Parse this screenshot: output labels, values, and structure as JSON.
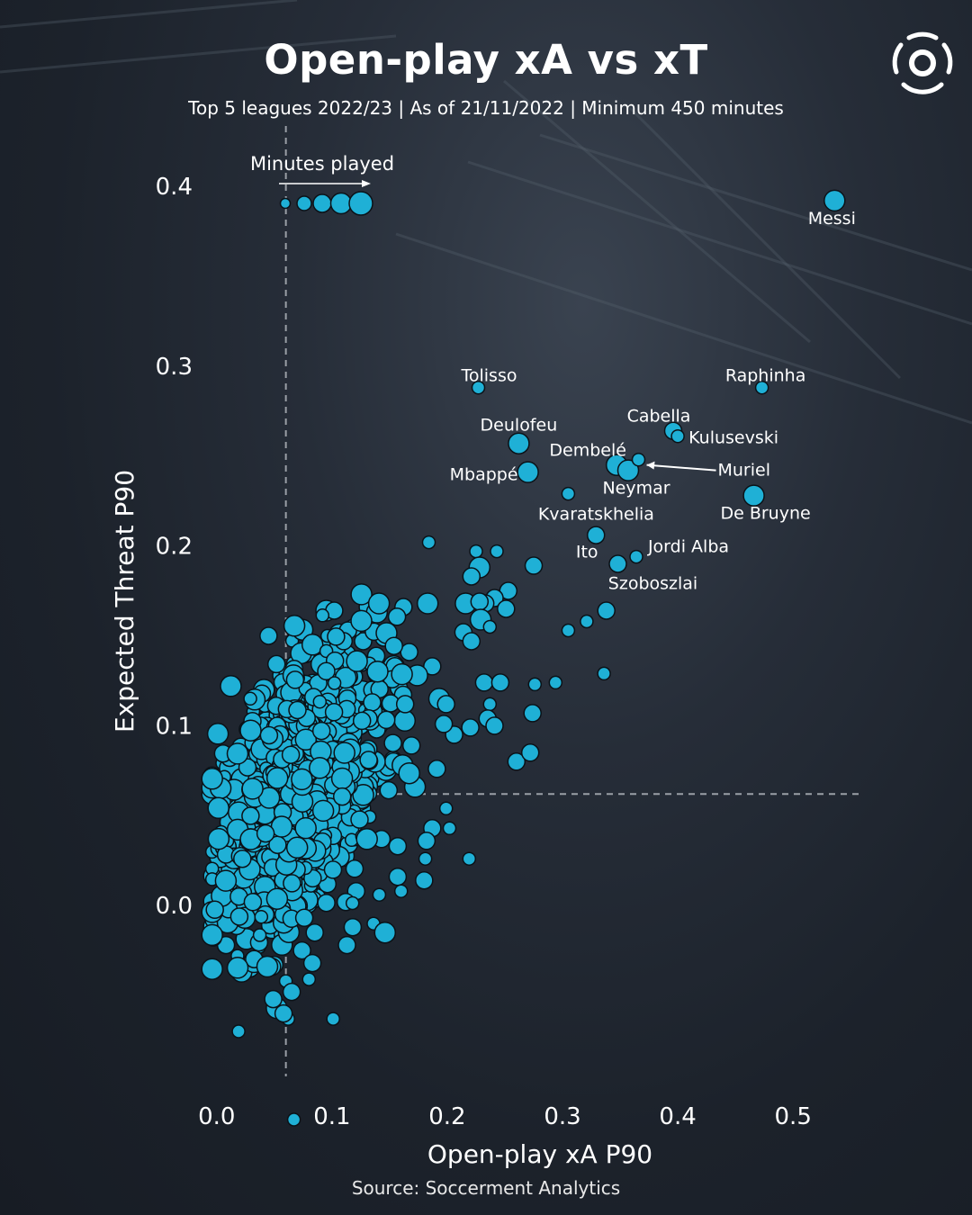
{
  "header": {
    "title": "Open-play xA vs xT",
    "subtitle": "Top 5 leagues 2022/23 | As of 21/11/2022 | Minimum 450 minutes",
    "source": "Source: Soccerment Analytics",
    "logo_icon": "soccerment-logo-icon"
  },
  "colors": {
    "marker": "#1fb0d6",
    "marker_edge": "#0b1218",
    "text": "#ffffff",
    "reference_line": "#9a9fa6",
    "background": "#1e242d"
  },
  "chart_data": {
    "type": "scatter",
    "title": "Open-play xA vs xT",
    "subtitle": "Top 5 leagues 2022/23 | As of 21/11/2022 | Minimum 450 minutes",
    "xlabel": "Open-play xA P90",
    "ylabel": "Expected Threat P90",
    "xlim": [
      -0.01,
      0.56
    ],
    "ylim": [
      -0.095,
      0.425
    ],
    "xticks": [
      0.0,
      0.1,
      0.2,
      0.3,
      0.4,
      0.5
    ],
    "xtick_labels": [
      "0.0",
      "0.1",
      "0.2",
      "0.3",
      "0.4",
      "0.5"
    ],
    "yticks": [
      0.0,
      0.1,
      0.2,
      0.3,
      0.4
    ],
    "ytick_labels": [
      "0.0",
      "0.1",
      "0.2",
      "0.3",
      "0.4"
    ],
    "grid": false,
    "reference_lines": {
      "x": 0.06,
      "y": 0.062
    },
    "size_legend": {
      "label": "Minutes played",
      "position": "top-left",
      "sizes": [
        "smallest",
        "small",
        "medium",
        "large",
        "largest"
      ]
    },
    "highlighted_players": [
      {
        "name": "Messi",
        "x": 0.536,
        "y": 0.392,
        "size": 3
      },
      {
        "name": "Tolisso",
        "x": 0.227,
        "y": 0.288,
        "size": 1
      },
      {
        "name": "Raphinha",
        "x": 0.473,
        "y": 0.288,
        "size": 1
      },
      {
        "name": "Deulofeu",
        "x": 0.262,
        "y": 0.257,
        "size": 3
      },
      {
        "name": "Cabella",
        "x": 0.396,
        "y": 0.264,
        "size": 2
      },
      {
        "name": "Kulusevski",
        "x": 0.4,
        "y": 0.261,
        "size": 1
      },
      {
        "name": "Dembelé",
        "x": 0.347,
        "y": 0.245,
        "size": 3
      },
      {
        "name": "Mbappé",
        "x": 0.27,
        "y": 0.241,
        "size": 3
      },
      {
        "name": "Neymar",
        "x": 0.357,
        "y": 0.242,
        "size": 3
      },
      {
        "name": "Muriel",
        "x": 0.366,
        "y": 0.248,
        "size": 1
      },
      {
        "name": "De Bruyne",
        "x": 0.466,
        "y": 0.228,
        "size": 3
      },
      {
        "name": "Kvaratskhelia",
        "x": 0.305,
        "y": 0.229,
        "size": 1
      },
      {
        "name": "Ito",
        "x": 0.329,
        "y": 0.206,
        "size": 2
      },
      {
        "name": "Jordi Alba",
        "x": 0.364,
        "y": 0.194,
        "size": 1
      },
      {
        "name": "Szoboszlai",
        "x": 0.348,
        "y": 0.19,
        "size": 2
      }
    ],
    "other_players": [
      [
        0.184,
        0.202,
        1
      ],
      [
        0.225,
        0.197,
        1
      ],
      [
        0.243,
        0.197,
        1
      ],
      [
        0.275,
        0.189,
        2
      ],
      [
        0.228,
        0.188,
        3
      ],
      [
        0.221,
        0.183,
        2
      ],
      [
        0.253,
        0.175,
        2
      ],
      [
        0.241,
        0.171,
        2
      ],
      [
        0.233,
        0.168,
        2
      ],
      [
        0.216,
        0.168,
        3
      ],
      [
        0.251,
        0.165,
        2
      ],
      [
        0.228,
        0.169,
        2
      ],
      [
        0.183,
        0.168,
        3
      ],
      [
        0.162,
        0.166,
        2
      ],
      [
        0.095,
        0.164,
        3
      ],
      [
        0.102,
        0.164,
        2
      ],
      [
        0.131,
        0.166,
        2
      ],
      [
        0.139,
        0.163,
        3
      ],
      [
        0.229,
        0.159,
        3
      ],
      [
        0.214,
        0.152,
        2
      ],
      [
        0.237,
        0.155,
        1
      ],
      [
        0.338,
        0.164,
        2
      ],
      [
        0.321,
        0.158,
        1
      ],
      [
        0.305,
        0.153,
        1
      ],
      [
        0.221,
        0.147,
        2
      ],
      [
        0.045,
        0.15,
        2
      ],
      [
        0.069,
        0.153,
        1
      ],
      [
        0.092,
        0.143,
        2
      ],
      [
        0.232,
        0.124,
        2
      ],
      [
        0.246,
        0.124,
        2
      ],
      [
        0.276,
        0.123,
        1
      ],
      [
        0.294,
        0.124,
        1
      ],
      [
        0.336,
        0.129,
        1
      ],
      [
        0.237,
        0.112,
        1
      ],
      [
        0.235,
        0.104,
        2
      ],
      [
        0.274,
        0.107,
        2
      ],
      [
        0.241,
        0.1,
        2
      ],
      [
        0.22,
        0.099,
        2
      ],
      [
        0.206,
        0.095,
        2
      ],
      [
        0.26,
        0.08,
        2
      ],
      [
        0.272,
        0.085,
        2
      ],
      [
        0.199,
        0.054,
        1
      ],
      [
        0.202,
        0.043,
        1
      ],
      [
        0.187,
        0.043,
        2
      ],
      [
        0.182,
        0.036,
        2
      ],
      [
        0.157,
        0.033,
        2
      ],
      [
        0.219,
        0.026,
        1
      ],
      [
        0.181,
        0.026,
        1
      ],
      [
        0.157,
        0.016,
        2
      ],
      [
        0.18,
        0.014,
        2
      ],
      [
        0.16,
        0.008,
        1
      ],
      [
        0.121,
        0.008,
        2
      ],
      [
        0.112,
        0.002,
        2
      ],
      [
        0.141,
        0.006,
        1
      ],
      [
        0.118,
        -0.012,
        2
      ],
      [
        0.136,
        -0.01,
        1
      ],
      [
        0.113,
        -0.022,
        2
      ],
      [
        0.146,
        -0.015,
        3
      ],
      [
        0.085,
        -0.015,
        2
      ],
      [
        0.074,
        -0.025,
        2
      ],
      [
        0.05,
        -0.033,
        2
      ],
      [
        0.037,
        -0.023,
        1
      ],
      [
        0.029,
        -0.035,
        2
      ],
      [
        0.06,
        -0.042,
        1
      ],
      [
        0.083,
        -0.032,
        2
      ],
      [
        0.08,
        -0.041,
        1
      ],
      [
        0.052,
        -0.057,
        3
      ],
      [
        0.065,
        -0.048,
        2
      ],
      [
        0.049,
        -0.052,
        2
      ],
      [
        0.008,
        -0.022,
        2
      ],
      [
        0.018,
        -0.028,
        1
      ],
      [
        0.062,
        -0.063,
        1
      ],
      [
        0.058,
        -0.06,
        2
      ],
      [
        0.101,
        -0.063,
        1
      ],
      [
        0.019,
        -0.07,
        1
      ],
      [
        0.067,
        -0.119,
        1
      ],
      [
        0.041,
        0.12,
        3
      ],
      [
        0.056,
        0.128,
        2
      ],
      [
        0.088,
        0.116,
        2
      ],
      [
        0.107,
        0.106,
        3
      ],
      [
        0.143,
        0.103,
        3
      ],
      [
        0.158,
        0.121,
        2
      ],
      [
        0.187,
        0.133,
        2
      ],
      [
        0.174,
        0.128,
        3
      ],
      [
        0.193,
        0.115,
        3
      ],
      [
        0.167,
        0.141,
        2
      ],
      [
        0.199,
        0.112,
        2
      ],
      [
        0.197,
        0.101,
        2
      ],
      [
        0.153,
        0.081,
        2
      ],
      [
        0.172,
        0.066,
        3
      ],
      [
        0.139,
        0.072,
        3
      ],
      [
        0.169,
        0.089,
        2
      ],
      [
        0.191,
        0.076,
        2
      ],
      [
        0.126,
        0.054,
        2
      ],
      [
        0.143,
        0.037,
        2
      ],
      [
        0.031,
        0.085,
        2
      ],
      [
        0.02,
        0.07,
        2
      ],
      [
        0.024,
        0.043,
        3
      ],
      [
        0.006,
        0.033,
        3
      ],
      [
        0.001,
        0.021,
        2
      ],
      [
        0.013,
        0.014,
        2
      ],
      [
        0.035,
        0.0,
        2
      ],
      [
        0.046,
        0.005,
        2
      ],
      [
        0.074,
        0.02,
        3
      ],
      [
        0.096,
        0.012,
        2
      ],
      [
        0.106,
        0.029,
        2
      ],
      [
        0.066,
        0.046,
        2
      ],
      [
        0.093,
        0.055,
        3
      ],
      [
        0.083,
        0.076,
        2
      ],
      [
        0.118,
        0.093,
        2
      ],
      [
        0.112,
        0.079,
        2
      ],
      [
        0.061,
        0.095,
        3
      ],
      [
        0.043,
        0.103,
        2
      ],
      [
        0.027,
        0.098,
        2
      ],
      [
        0.012,
        0.06,
        2
      ],
      [
        0.039,
        0.058,
        3
      ],
      [
        0.054,
        0.07,
        2
      ],
      [
        0.075,
        0.091,
        2
      ],
      [
        0.128,
        0.118,
        2
      ],
      [
        0.151,
        0.131,
        2
      ],
      [
        0.113,
        0.14,
        2
      ],
      [
        0.127,
        0.147,
        2
      ],
      [
        0.145,
        0.149,
        2
      ]
    ]
  }
}
